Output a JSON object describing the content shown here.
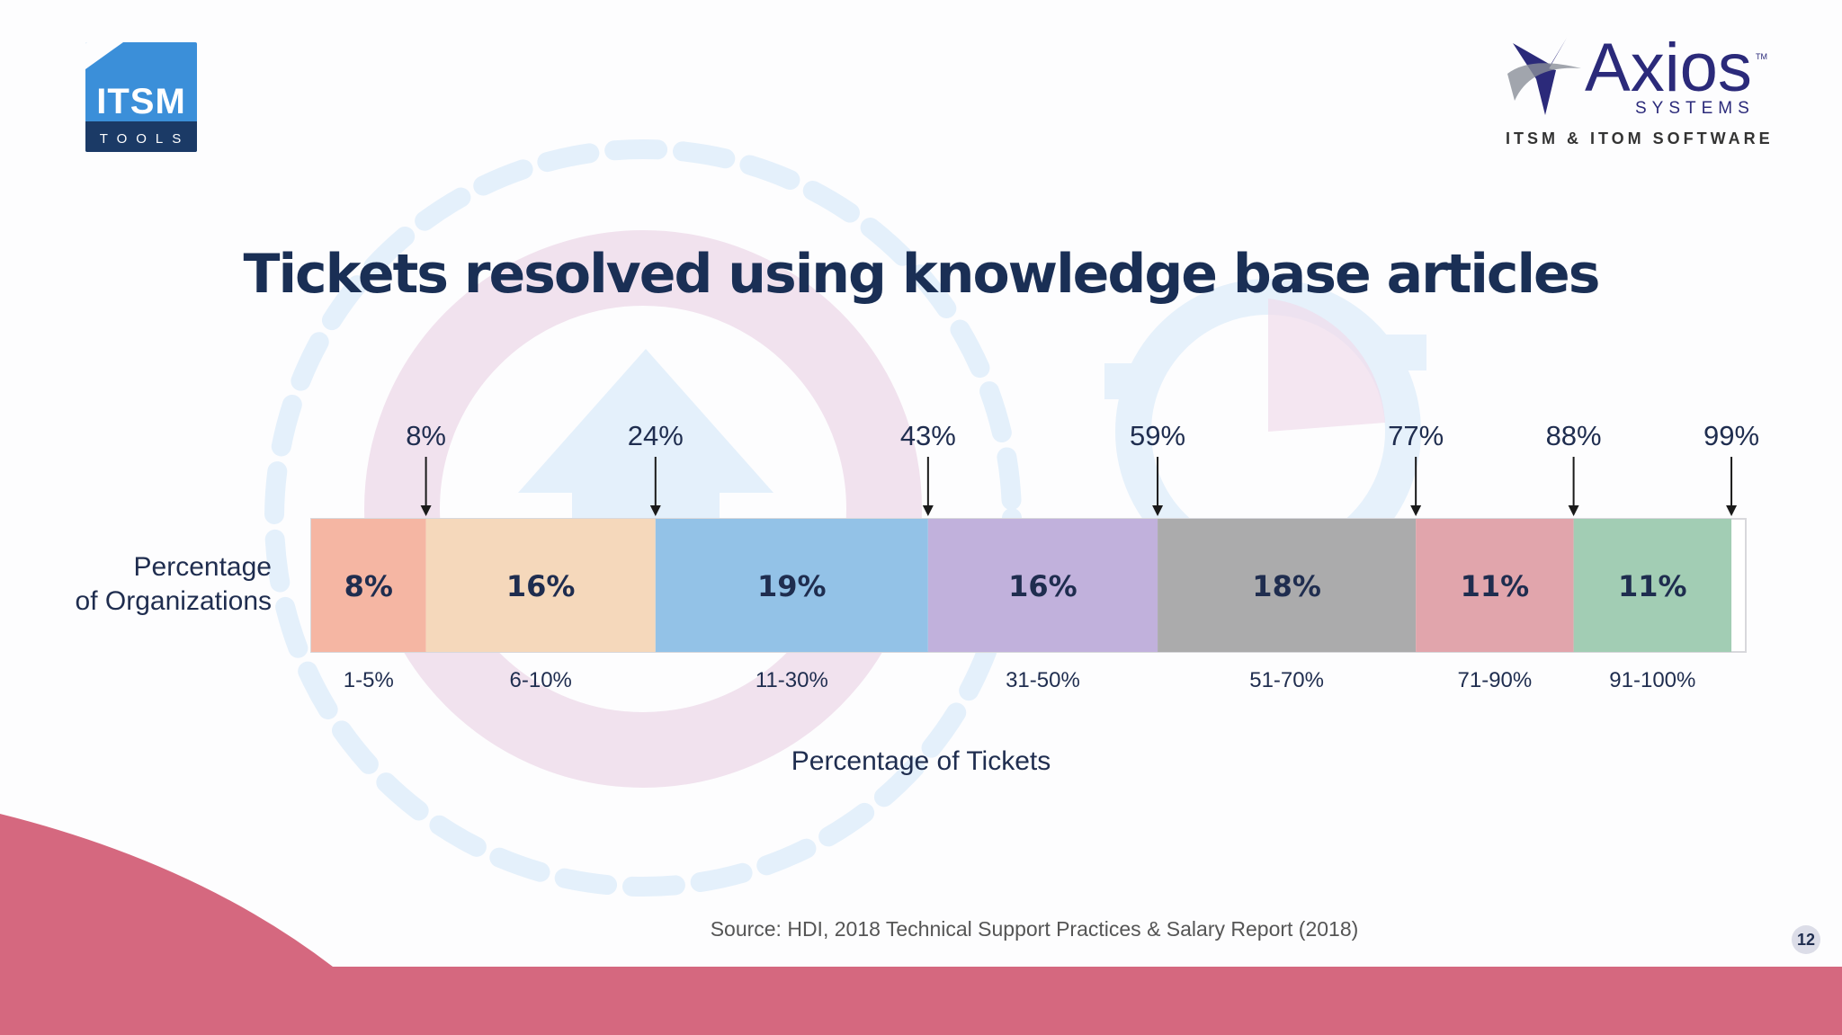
{
  "branding": {
    "itsm_logo_word": "ITSM",
    "itsm_logo_sub": "TOOLS",
    "axios_name": "Axios",
    "axios_tm": "TM",
    "axios_systems": "SYSTEMS",
    "axios_tagline": "ITSM & ITOM SOFTWARE"
  },
  "slide": {
    "title": "Tickets resolved using knowledge base articles",
    "source": "Source: HDI, 2018 Technical Support Practices & Salary Report (2018)",
    "page_number": "12"
  },
  "colors": {
    "accent_pink": "#d5687f",
    "title_navy": "#1a2f55"
  },
  "chart_data": {
    "type": "bar",
    "subtype": "stacked-horizontal-100",
    "ylabel_lines": [
      "Percentage",
      "of Organizations"
    ],
    "xlabel": "Percentage of Tickets",
    "xlim": [
      0,
      100
    ],
    "categories": [
      "1-5%",
      "6-10%",
      "11-30%",
      "31-50%",
      "51-70%",
      "71-90%",
      "91-100%"
    ],
    "values": [
      8,
      16,
      19,
      16,
      18,
      11,
      11
    ],
    "value_labels": [
      "8%",
      "16%",
      "19%",
      "16%",
      "18%",
      "11%",
      "11%"
    ],
    "cumulative_labels": [
      "8%",
      "24%",
      "43%",
      "59%",
      "77%",
      "88%",
      "99%"
    ],
    "cumulative_values": [
      8,
      24,
      43,
      59,
      77,
      88,
      99
    ],
    "segment_colors": [
      "#f5b6a3",
      "#f5d8bb",
      "#93c2e7",
      "#c1b1dc",
      "#ababac",
      "#e1a5ac",
      "#a2cdb4"
    ],
    "remainder_color": "#ffffff"
  }
}
